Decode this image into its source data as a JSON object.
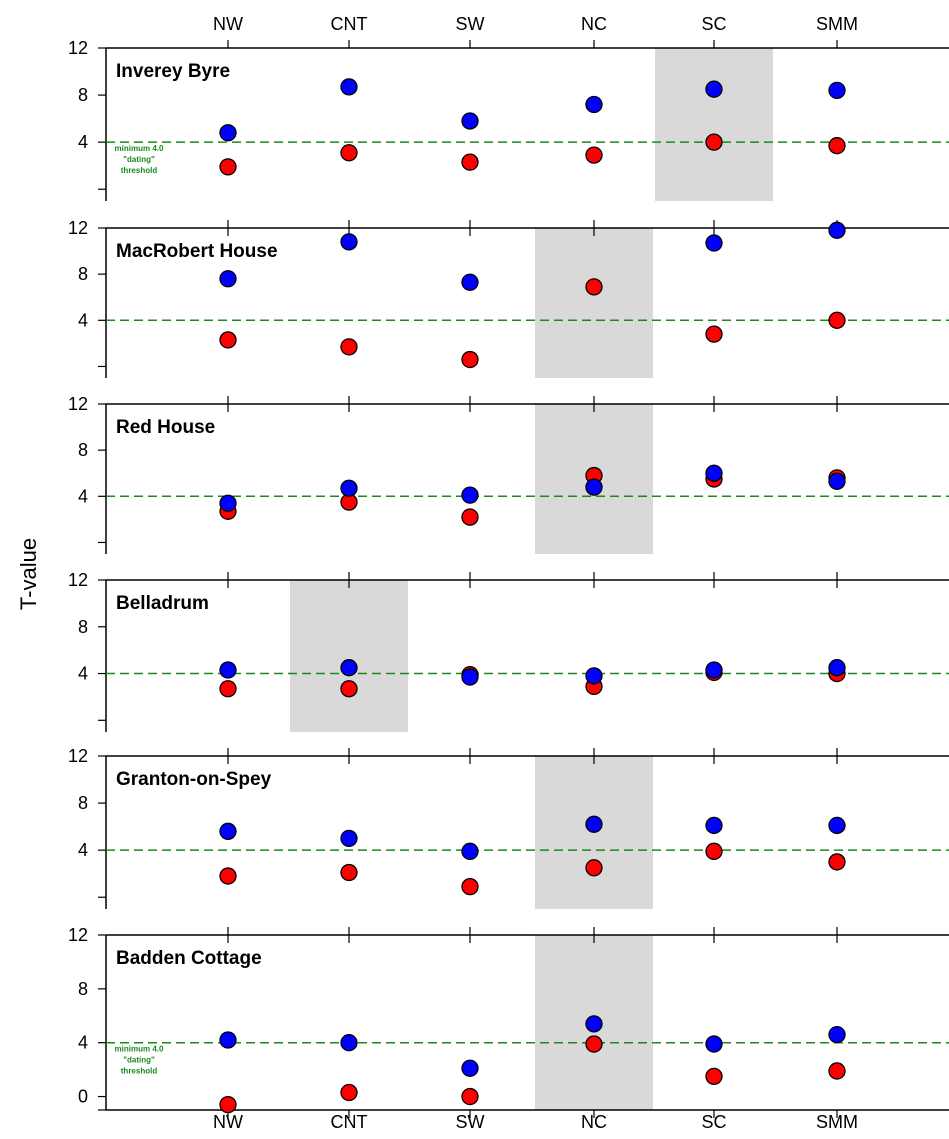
{
  "chart_data": {
    "type": "scatter",
    "ylabel": "T-value",
    "categories": [
      "NW",
      "CNT",
      "SW",
      "NC",
      "SC",
      "SMM"
    ],
    "threshold": {
      "value": 4,
      "color": "#1a8a1a",
      "note_lines": [
        "minimum 4.0",
        "\"dating\"",
        "threshold"
      ]
    },
    "colors": {
      "blue": "#0000ff",
      "red": "#ff0000",
      "shade": "#d9d9d9"
    },
    "panels": [
      {
        "title": "Inverey Byre",
        "highlight": "SC",
        "y_ticks": [
          "4",
          "8",
          "12"
        ],
        "ylim": [
          -1,
          12
        ],
        "blue": [
          4.8,
          8.7,
          5.8,
          7.2,
          8.5,
          8.4
        ],
        "red": [
          1.9,
          3.1,
          2.3,
          2.9,
          4.0,
          3.7
        ],
        "show_note": true
      },
      {
        "title": "MacRobert House",
        "highlight": "NC",
        "y_ticks": [
          "4",
          "8",
          "12"
        ],
        "ylim": [
          -1,
          12
        ],
        "blue": [
          7.6,
          10.8,
          7.3,
          null,
          10.7,
          11.8
        ],
        "red": [
          2.3,
          1.7,
          0.6,
          6.9,
          2.8,
          4.0
        ],
        "show_note": false
      },
      {
        "title": "Red House",
        "highlight": "NC",
        "y_ticks": [
          "4",
          "8",
          "12"
        ],
        "ylim": [
          -1,
          12
        ],
        "blue": [
          3.4,
          4.7,
          4.1,
          4.8,
          6.0,
          5.3
        ],
        "red": [
          2.7,
          3.5,
          2.2,
          5.8,
          5.5,
          5.6
        ],
        "show_note": false
      },
      {
        "title": "Belladrum",
        "highlight": "CNT",
        "y_ticks": [
          "4",
          "8",
          "12"
        ],
        "ylim": [
          -1,
          12
        ],
        "blue": [
          4.3,
          4.5,
          3.7,
          3.8,
          4.3,
          4.5
        ],
        "red": [
          2.7,
          2.7,
          3.9,
          2.9,
          4.1,
          4.0
        ],
        "show_note": false
      },
      {
        "title": "Granton-on-Spey",
        "highlight": "NC",
        "y_ticks": [
          "4",
          "8",
          "12"
        ],
        "ylim": [
          -1,
          12
        ],
        "blue": [
          5.6,
          5.0,
          3.9,
          6.2,
          6.1,
          6.1
        ],
        "red": [
          1.8,
          2.1,
          0.9,
          2.5,
          3.9,
          3.0
        ],
        "show_note": false
      },
      {
        "title": "Badden Cottage",
        "highlight": "NC",
        "y_ticks": [
          "0",
          "4",
          "8",
          "12"
        ],
        "ylim": [
          -1,
          12
        ],
        "blue": [
          4.2,
          4.0,
          2.1,
          5.4,
          3.9,
          4.6
        ],
        "red": [
          -0.6,
          0.3,
          0.0,
          3.9,
          1.5,
          1.9
        ],
        "show_note": true
      }
    ]
  }
}
